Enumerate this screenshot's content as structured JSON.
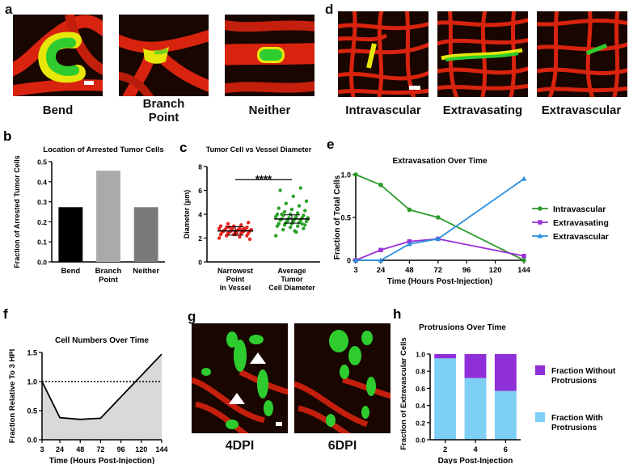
{
  "panels": {
    "a": {
      "letter": "a",
      "captions": [
        "Bend",
        "Branch\nPoint",
        "Neither"
      ]
    },
    "d": {
      "letter": "d",
      "captions": [
        "Intravascular",
        "Extravasating",
        "Extravascular"
      ]
    },
    "g": {
      "letter": "g",
      "captions": [
        "4DPI",
        "6DPI"
      ]
    }
  },
  "colors": {
    "vessel_red": "#d8230f",
    "tumor_green": "#2fcc2f",
    "tumor_yellow": "#e6e60a",
    "bg_dark": "#190600",
    "intravascular": "#2b9a2b",
    "extravasating": "#9b30d9",
    "extravascular": "#2a8fe0",
    "with_protrusions": "#7ecff6",
    "without_protrusions": "#8e2fd8",
    "area_fill": "#d9d9d9"
  },
  "chart_data": [
    {
      "panel": "b",
      "type": "bar",
      "title": "Location of Arrested Tumor Cells",
      "ylabel": "Fraction of Arrested Tumor Cells",
      "categories": [
        "Bend",
        "Branch\nPoint",
        "Neither"
      ],
      "values": [
        0.273,
        0.455,
        0.273
      ],
      "bar_colors": [
        "#000000",
        "#aaaaaa",
        "#7a7a7a"
      ],
      "ylim": [
        0,
        0.5
      ],
      "yticks": [
        "0.0",
        "0.1",
        "0.2",
        "0.3",
        "0.4",
        "0.5"
      ]
    },
    {
      "panel": "c",
      "type": "scatter",
      "title": "Tumor Cell vs Vessel Diameter",
      "ylabel": "Diameter (μm)",
      "categories": [
        "Narrowest\nPoint\nIn Vessel",
        "Average\nTumor\nCell Diameter"
      ],
      "ylim": [
        0,
        8
      ],
      "yticks": [
        "0",
        "2",
        "4",
        "6",
        "8"
      ],
      "significance": "****",
      "series": [
        {
          "color": "#e8231c",
          "mean": 2.6,
          "values": [
            2.0,
            2.1,
            2.2,
            2.2,
            2.3,
            2.3,
            2.4,
            2.4,
            2.4,
            2.5,
            2.5,
            2.5,
            2.5,
            2.6,
            2.6,
            2.6,
            2.6,
            2.6,
            2.7,
            2.7,
            2.7,
            2.7,
            2.8,
            2.8,
            2.8,
            2.9,
            2.9,
            3.0,
            3.0,
            3.1,
            3.2,
            3.3,
            2.3,
            2.5,
            2.7,
            2.9,
            1.9,
            2.4,
            2.6,
            2.8
          ]
        },
        {
          "color": "#2aa22a",
          "mean": 3.6,
          "values": [
            2.2,
            2.5,
            2.7,
            2.8,
            2.9,
            3.0,
            3.0,
            3.1,
            3.1,
            3.2,
            3.2,
            3.3,
            3.3,
            3.4,
            3.4,
            3.5,
            3.5,
            3.5,
            3.6,
            3.6,
            3.6,
            3.7,
            3.7,
            3.8,
            3.8,
            3.9,
            3.9,
            4.0,
            4.0,
            4.1,
            4.2,
            4.3,
            4.4,
            4.5,
            4.7,
            4.9,
            5.1,
            5.5,
            6.0,
            6.2,
            3.4,
            3.7,
            2.6,
            4.0,
            3.2
          ]
        }
      ]
    },
    {
      "panel": "e",
      "type": "line",
      "title": "Extravasation Over Time",
      "xlabel": "Time (Hours Post-Injection)",
      "ylabel": "Fraction of Total Cells",
      "x": [
        3,
        24,
        48,
        72,
        96,
        120,
        144
      ],
      "xticks": [
        "3",
        "24",
        "48",
        "72",
        "96",
        "120",
        "144"
      ],
      "ylim": [
        0,
        1
      ],
      "yticks": [
        "0",
        "0.5",
        "1.0"
      ],
      "legend_position": "right",
      "series": [
        {
          "name": "Intravascular",
          "color": "#2b9a2b",
          "marker": "circle",
          "x": [
            3,
            24,
            48,
            72,
            144
          ],
          "values": [
            1.0,
            0.88,
            0.59,
            0.5,
            0.0
          ]
        },
        {
          "name": "Extravasating",
          "color": "#9b30d9",
          "marker": "square",
          "x": [
            3,
            24,
            48,
            72,
            144
          ],
          "values": [
            0.0,
            0.12,
            0.22,
            0.25,
            0.05
          ]
        },
        {
          "name": "Extravascular",
          "color": "#2a8fe0",
          "marker": "triangle",
          "x": [
            3,
            24,
            48,
            72,
            144
          ],
          "values": [
            0.0,
            0.0,
            0.19,
            0.25,
            0.95
          ]
        }
      ]
    },
    {
      "panel": "f",
      "type": "area",
      "title": "Cell Numbers Over Time",
      "xlabel": "Time (Hours Post-Injection)",
      "ylabel": "Fraction Relative To 3 HPI",
      "x": [
        3,
        24,
        48,
        72,
        144
      ],
      "values": [
        1.0,
        0.38,
        0.35,
        0.37,
        1.47
      ],
      "xticks": [
        "3",
        "24",
        "48",
        "72",
        "96",
        "120",
        "144"
      ],
      "xtick_values": [
        3,
        24,
        48,
        72,
        96,
        120,
        144
      ],
      "ylim": [
        0,
        1.5
      ],
      "yticks": [
        "0.0",
        "0.5",
        "1.0",
        "1.5"
      ],
      "reference_line": 1.0
    },
    {
      "panel": "h",
      "type": "bar",
      "stacked": true,
      "title": "Protrusions Over Time",
      "xlabel": "Days Post-Injection",
      "ylabel": "Fraction of Extravascular Cells",
      "categories": [
        "2",
        "4",
        "6"
      ],
      "ylim": [
        0,
        1
      ],
      "yticks": [
        "0.0",
        "0.2",
        "0.4",
        "0.6",
        "0.8",
        "1.0"
      ],
      "series": [
        {
          "name": "Fraction With\nProtrusions",
          "color": "#7ecff6",
          "values": [
            0.95,
            0.72,
            0.57
          ]
        },
        {
          "name": "Fraction Without\nProtrusions",
          "color": "#8e2fd8",
          "values": [
            0.05,
            0.28,
            0.43
          ]
        }
      ]
    }
  ]
}
